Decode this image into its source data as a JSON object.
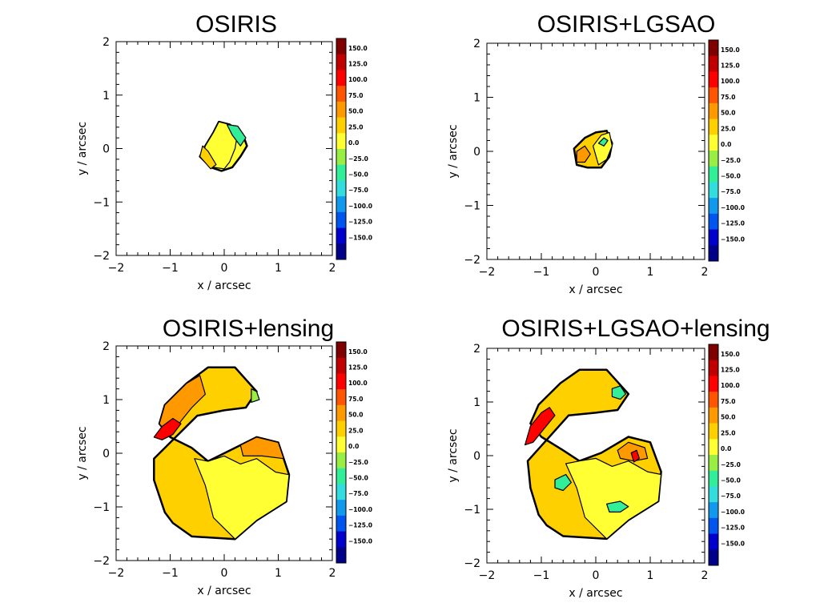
{
  "chart_data": [
    {
      "type": "heatmap",
      "title": "OSIRIS",
      "xlabel": "x / arcsec",
      "ylabel": "y / arcsec",
      "xlim": [
        -2,
        2
      ],
      "ylim": [
        -2,
        2
      ],
      "x_ticks": [
        "−2",
        "−1",
        "0",
        "1",
        "2"
      ],
      "y_ticks": [
        "−2",
        "−1",
        "0",
        "1",
        "2"
      ],
      "colorbar_levels": [
        "150.0",
        "125.0",
        "100.0",
        "75.0",
        "50.0",
        "25.0",
        "0.0",
        "−25.0",
        "−50.0",
        "−75.0",
        "−100.0",
        "−125.0",
        "−150.0"
      ],
      "regions": [
        {
          "value": 12,
          "outline": [
            [
              -0.35,
              0.05
            ],
            [
              -0.2,
              0.3
            ],
            [
              -0.1,
              0.5
            ],
            [
              0.1,
              0.45
            ],
            [
              0.35,
              0.25
            ],
            [
              0.42,
              0.05
            ],
            [
              0.3,
              -0.15
            ],
            [
              0.15,
              -0.35
            ],
            [
              -0.05,
              -0.42
            ],
            [
              -0.25,
              -0.35
            ],
            [
              -0.45,
              -0.15
            ]
          ]
        },
        {
          "value": -8,
          "outline": [
            [
              -0.35,
              0.05
            ],
            [
              -0.2,
              0.3
            ],
            [
              -0.1,
              0.5
            ],
            [
              0.1,
              0.45
            ],
            [
              0.25,
              0.3
            ],
            [
              0.2,
              0.0
            ],
            [
              0.1,
              -0.25
            ],
            [
              0.0,
              -0.38
            ],
            [
              -0.2,
              -0.35
            ],
            [
              -0.4,
              -0.12
            ]
          ]
        },
        {
          "value": -40,
          "outline": [
            [
              0.05,
              0.45
            ],
            [
              0.25,
              0.42
            ],
            [
              0.4,
              0.2
            ],
            [
              0.3,
              0.05
            ],
            [
              0.15,
              0.25
            ]
          ]
        },
        {
          "value": 35,
          "outline": [
            [
              -0.45,
              -0.15
            ],
            [
              -0.4,
              0.05
            ],
            [
              -0.3,
              -0.05
            ],
            [
              -0.15,
              -0.3
            ],
            [
              -0.25,
              -0.38
            ]
          ]
        }
      ]
    },
    {
      "type": "heatmap",
      "title": "OSIRIS+LGSAO",
      "xlabel": "x / arcsec",
      "ylabel": "y / arcsec",
      "xlim": [
        -2,
        2
      ],
      "ylim": [
        -2,
        2
      ],
      "x_ticks": [
        "−2",
        "−1",
        "0",
        "1",
        "2"
      ],
      "y_ticks": [
        "−2",
        "−1",
        "0",
        "1",
        "2"
      ],
      "colorbar_levels": [
        "150.0",
        "125.0",
        "100.0",
        "75.0",
        "50.0",
        "25.0",
        "0.0",
        "−25.0",
        "−50.0",
        "−75.0",
        "−100.0",
        "−125.0",
        "−150.0"
      ],
      "regions": [
        {
          "value": 15,
          "outline": [
            [
              -0.4,
              0.05
            ],
            [
              -0.2,
              0.25
            ],
            [
              0.0,
              0.35
            ],
            [
              0.2,
              0.38
            ],
            [
              0.3,
              0.15
            ],
            [
              0.25,
              -0.1
            ],
            [
              0.1,
              -0.3
            ],
            [
              -0.15,
              -0.3
            ],
            [
              -0.35,
              -0.25
            ]
          ]
        },
        {
          "value": -10,
          "outline": [
            [
              -0.05,
              0.1
            ],
            [
              0.1,
              0.3
            ],
            [
              0.25,
              0.35
            ],
            [
              0.3,
              0.1
            ],
            [
              0.2,
              -0.15
            ],
            [
              0.05,
              -0.25
            ]
          ]
        },
        {
          "value": 60,
          "outline": [
            [
              -0.35,
              0.0
            ],
            [
              -0.2,
              0.1
            ],
            [
              -0.1,
              -0.05
            ],
            [
              -0.2,
              -0.2
            ],
            [
              -0.35,
              -0.2
            ]
          ]
        },
        {
          "value": -60,
          "outline": [
            [
              0.05,
              0.15
            ],
            [
              0.15,
              0.25
            ],
            [
              0.22,
              0.2
            ],
            [
              0.15,
              0.1
            ]
          ]
        }
      ]
    },
    {
      "type": "heatmap",
      "title": "OSIRIS+lensing",
      "xlabel": "x / arcsec",
      "ylabel": "y / arcsec",
      "xlim": [
        -2,
        2
      ],
      "ylim": [
        -2,
        2
      ],
      "x_ticks": [
        "−2",
        "−1",
        "0",
        "1",
        "2"
      ],
      "y_ticks": [
        "−2",
        "−1",
        "0",
        "1",
        "2"
      ],
      "colorbar_levels": [
        "150.0",
        "125.0",
        "100.0",
        "75.0",
        "50.0",
        "25.0",
        "0.0",
        "−25.0",
        "−50.0",
        "−75.0",
        "−100.0",
        "−125.0",
        "−150.0"
      ],
      "regions": [
        {
          "value": 20,
          "outline": [
            [
              -1.3,
              -0.1
            ],
            [
              -1.3,
              -0.5
            ],
            [
              -1.1,
              -1.1
            ],
            [
              -0.95,
              -1.3
            ],
            [
              -0.6,
              -1.55
            ],
            [
              0.2,
              -1.6
            ],
            [
              0.6,
              -1.25
            ],
            [
              1.15,
              -0.9
            ],
            [
              1.2,
              -0.4
            ],
            [
              1.0,
              0.2
            ],
            [
              0.6,
              0.3
            ],
            [
              0.1,
              0.05
            ],
            [
              -0.3,
              -0.15
            ],
            [
              -0.6,
              0.1
            ],
            [
              -1.0,
              0.3
            ],
            [
              -1.2,
              0.55
            ],
            [
              -1.1,
              0.9
            ],
            [
              -0.7,
              1.3
            ],
            [
              -0.3,
              1.6
            ],
            [
              0.2,
              1.6
            ],
            [
              0.6,
              1.15
            ],
            [
              0.4,
              0.85
            ],
            [
              0.0,
              0.8
            ],
            [
              -0.5,
              0.7
            ]
          ]
        },
        {
          "value": -10,
          "outline": [
            [
              -0.55,
              -0.1
            ],
            [
              -0.35,
              -0.6
            ],
            [
              -0.2,
              -1.2
            ],
            [
              0.2,
              -1.6
            ],
            [
              0.6,
              -1.25
            ],
            [
              1.15,
              -0.9
            ],
            [
              1.2,
              -0.4
            ],
            [
              0.95,
              -0.35
            ],
            [
              0.6,
              -0.1
            ],
            [
              0.3,
              -0.2
            ],
            [
              0.0,
              -0.05
            ],
            [
              -0.3,
              -0.15
            ]
          ]
        },
        {
          "value": 55,
          "outline": [
            [
              -1.0,
              0.3
            ],
            [
              -1.2,
              0.55
            ],
            [
              -1.1,
              0.9
            ],
            [
              -0.7,
              1.3
            ],
            [
              -0.45,
              1.45
            ],
            [
              -0.35,
              1.1
            ],
            [
              -0.6,
              0.85
            ],
            [
              -0.8,
              0.6
            ]
          ]
        },
        {
          "value": 60,
          "outline": [
            [
              0.3,
              0.15
            ],
            [
              0.6,
              0.3
            ],
            [
              1.0,
              0.2
            ],
            [
              1.1,
              -0.1
            ],
            [
              0.7,
              -0.05
            ],
            [
              0.35,
              -0.05
            ]
          ]
        },
        {
          "value": 90,
          "outline": [
            [
              -1.3,
              0.3
            ],
            [
              -1.15,
              0.5
            ],
            [
              -0.95,
              0.65
            ],
            [
              -0.8,
              0.55
            ],
            [
              -0.95,
              0.35
            ],
            [
              -1.15,
              0.25
            ]
          ]
        },
        {
          "value": -25,
          "outline": [
            [
              0.5,
              1.2
            ],
            [
              0.6,
              1.15
            ],
            [
              0.65,
              1.0
            ],
            [
              0.5,
              0.95
            ]
          ]
        }
      ]
    },
    {
      "type": "heatmap",
      "title": "OSIRIS+LGSAO+lensing",
      "xlabel": "x / arcsec",
      "ylabel": "y / arcsec",
      "xlim": [
        -2,
        2
      ],
      "ylim": [
        -2,
        2
      ],
      "x_ticks": [
        "−2",
        "−1",
        "0",
        "1",
        "2"
      ],
      "y_ticks": [
        "−2",
        "−1",
        "0",
        "1",
        "2"
      ],
      "colorbar_levels": [
        "150.0",
        "125.0",
        "100.0",
        "75.0",
        "50.0",
        "25.0",
        "0.0",
        "−25.0",
        "−50.0",
        "−75.0",
        "−100.0",
        "−125.0",
        "−150.0"
      ],
      "regions": [
        {
          "value": 20,
          "outline": [
            [
              -1.25,
              -0.1
            ],
            [
              -1.2,
              -0.6
            ],
            [
              -1.05,
              -1.1
            ],
            [
              -0.9,
              -1.3
            ],
            [
              -0.6,
              -1.5
            ],
            [
              0.2,
              -1.55
            ],
            [
              0.6,
              -1.2
            ],
            [
              1.15,
              -0.85
            ],
            [
              1.2,
              -0.3
            ],
            [
              1.0,
              0.25
            ],
            [
              0.6,
              0.35
            ],
            [
              0.1,
              0.05
            ],
            [
              -0.3,
              -0.1
            ],
            [
              -0.6,
              0.1
            ],
            [
              -1.0,
              0.35
            ],
            [
              -1.2,
              0.6
            ],
            [
              -1.05,
              0.95
            ],
            [
              -0.65,
              1.35
            ],
            [
              -0.3,
              1.6
            ],
            [
              0.2,
              1.6
            ],
            [
              0.6,
              1.15
            ],
            [
              0.4,
              0.85
            ],
            [
              0.0,
              0.8
            ],
            [
              -0.5,
              0.75
            ]
          ]
        },
        {
          "value": -10,
          "outline": [
            [
              -0.55,
              -0.15
            ],
            [
              -0.35,
              -0.6
            ],
            [
              -0.2,
              -1.15
            ],
            [
              0.2,
              -1.55
            ],
            [
              0.6,
              -1.2
            ],
            [
              1.15,
              -0.85
            ],
            [
              1.2,
              -0.35
            ],
            [
              0.95,
              -0.3
            ],
            [
              0.6,
              -0.1
            ],
            [
              0.3,
              -0.2
            ],
            [
              0.0,
              -0.05
            ],
            [
              -0.3,
              -0.1
            ]
          ]
        },
        {
          "value": 55,
          "outline": [
            [
              0.4,
              0.1
            ],
            [
              0.6,
              0.25
            ],
            [
              0.9,
              0.15
            ],
            [
              0.95,
              -0.05
            ],
            [
              0.7,
              -0.1
            ],
            [
              0.45,
              -0.05
            ]
          ]
        },
        {
          "value": 90,
          "outline": [
            [
              -1.3,
              0.2
            ],
            [
              -1.2,
              0.55
            ],
            [
              -1.0,
              0.8
            ],
            [
              -0.85,
              0.9
            ],
            [
              -0.75,
              0.75
            ],
            [
              -0.95,
              0.5
            ],
            [
              -1.15,
              0.25
            ]
          ]
        },
        {
          "value": 110,
          "outline": [
            [
              0.65,
              0.05
            ],
            [
              0.75,
              0.1
            ],
            [
              0.8,
              -0.05
            ],
            [
              0.7,
              -0.12
            ]
          ]
        },
        {
          "value": -40,
          "outline": [
            [
              0.3,
              1.25
            ],
            [
              0.45,
              1.3
            ],
            [
              0.55,
              1.15
            ],
            [
              0.45,
              1.05
            ],
            [
              0.3,
              1.1
            ]
          ]
        },
        {
          "value": -40,
          "outline": [
            [
              -0.75,
              -0.45
            ],
            [
              -0.55,
              -0.35
            ],
            [
              -0.45,
              -0.5
            ],
            [
              -0.6,
              -0.65
            ],
            [
              -0.75,
              -0.6
            ]
          ]
        },
        {
          "value": -40,
          "outline": [
            [
              0.2,
              -0.9
            ],
            [
              0.45,
              -0.85
            ],
            [
              0.6,
              -0.95
            ],
            [
              0.45,
              -1.05
            ],
            [
              0.25,
              -1.05
            ]
          ]
        }
      ]
    }
  ]
}
